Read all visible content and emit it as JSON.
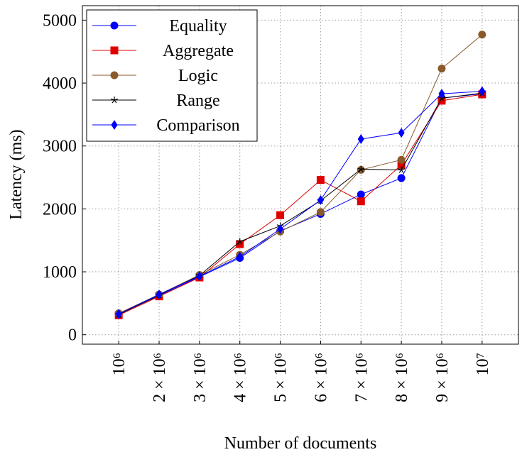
{
  "chart_data": {
    "type": "line",
    "xlabel": "Number of documents",
    "ylabel": "Latency (ms)",
    "categories": [
      "10⁶",
      "2 × 10⁶",
      "3 × 10⁶",
      "4 × 10⁶",
      "5 × 10⁶",
      "6 × 10⁶",
      "7 × 10⁶",
      "8 × 10⁶",
      "9 × 10⁶",
      "10⁷"
    ],
    "series": [
      {
        "name": "Equality",
        "color": "#0000ff",
        "marker": "circle",
        "values": [
          330,
          620,
          920,
          1220,
          1650,
          1920,
          2230,
          2490,
          3760,
          3830
        ]
      },
      {
        "name": "Aggregate",
        "color": "#e00000",
        "marker": "square",
        "values": [
          310,
          610,
          910,
          1440,
          1900,
          2460,
          2120,
          2700,
          3720,
          3820
        ]
      },
      {
        "name": "Logic",
        "color": "#8b5a2b",
        "marker": "circle",
        "values": [
          340,
          640,
          950,
          1270,
          1640,
          1950,
          2620,
          2780,
          4230,
          4770
        ]
      },
      {
        "name": "Range",
        "color": "#000000",
        "marker": "star",
        "values": [
          320,
          630,
          940,
          1480,
          1730,
          2130,
          2630,
          2620,
          3760,
          3840
        ]
      },
      {
        "name": "Comparison",
        "color": "#0000ff",
        "marker": "diamond",
        "values": [
          330,
          640,
          930,
          1240,
          1680,
          2140,
          3110,
          3210,
          3830,
          3870
        ]
      }
    ],
    "ylim": [
      -150,
      5230
    ],
    "yticks": [
      0,
      1000,
      2000,
      3000,
      4000,
      5000
    ],
    "grid": true,
    "legend": "upper left"
  }
}
